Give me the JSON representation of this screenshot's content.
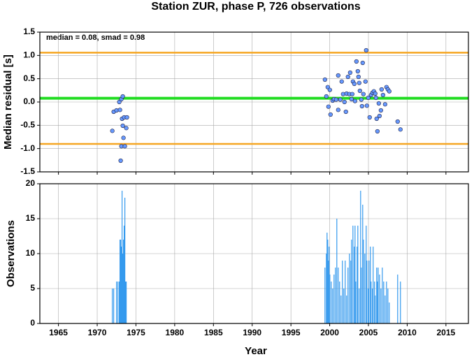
{
  "chart_data": [
    {
      "type": "scatter",
      "title": "Station ZUR, phase P, 726 observations",
      "y_label": "Median residual [s]",
      "annotation": "median = 0.08, smad = 0.98",
      "x": [
        1971.95,
        1972.13,
        1972.49,
        1972.85,
        1972.94,
        1973.12,
        1973.3,
        1973.21,
        1973.48,
        1973.3,
        1973.39,
        1973.12,
        1973.57,
        1973.75,
        1973.03,
        1973.84,
        1999.39,
        1999.57,
        1999.75,
        1999.84,
        2000.02,
        2000.11,
        2000.38,
        2000.56,
        2000.83,
        2001.1,
        2001.1,
        2001.37,
        2001.55,
        2001.73,
        2001.91,
        2002.09,
        2002.18,
        2002.36,
        2002.55,
        2002.64,
        2002.82,
        2002.91,
        2003.0,
        2003.18,
        2003.27,
        2003.45,
        2003.63,
        2003.72,
        2003.81,
        2003.9,
        2004.08,
        2004.17,
        2004.26,
        2004.35,
        2004.62,
        2004.71,
        2004.8,
        2004.98,
        2005.16,
        2005.34,
        2005.52,
        2005.7,
        2005.88,
        2005.97,
        2006.06,
        2006.16,
        2006.34,
        2006.43,
        2006.61,
        2006.7,
        2006.88,
        2007.15,
        2007.33,
        2007.51,
        2007.69,
        2008.77,
        2009.13
      ],
      "values": [
        -0.62,
        -0.21,
        -0.18,
        0.0,
        -0.17,
        0.06,
        0.12,
        -0.36,
        -0.33,
        -0.51,
        -0.77,
        -0.95,
        -0.95,
        -0.56,
        -1.26,
        -0.33,
        0.48,
        0.12,
        0.32,
        -0.1,
        0.26,
        -0.27,
        0.03,
        0.06,
        0.05,
        0.57,
        -0.17,
        0.05,
        0.44,
        0.17,
        0.0,
        -0.21,
        0.18,
        0.54,
        0.17,
        0.63,
        0.06,
        0.17,
        0.44,
        0.39,
        0.02,
        0.87,
        0.66,
        0.54,
        0.41,
        0.24,
        0.05,
        -0.09,
        0.84,
        0.17,
        0.44,
        1.11,
        -0.08,
        0.09,
        -0.33,
        0.15,
        0.2,
        0.23,
        0.18,
        0.09,
        -0.36,
        -0.63,
        -0.03,
        -0.3,
        -0.18,
        0.27,
        0.15,
        -0.05,
        0.32,
        0.27,
        0.23,
        -0.42,
        -0.59
      ],
      "color": "#6699ff",
      "reference_lines": [
        {
          "value": 1.06,
          "color": "#f5a623"
        },
        {
          "value": 0.08,
          "color": "#22dd22"
        },
        {
          "value": -0.9,
          "color": "#f5a623"
        }
      ],
      "xlim": [
        1962.6,
        2017.9
      ],
      "xticks": [
        1965,
        1970,
        1975,
        1980,
        1985,
        1990,
        1995,
        2000,
        2005,
        2010,
        2015
      ],
      "ylim": [
        -1.5,
        1.5
      ],
      "yticks": [
        -1.5,
        {
          "value": -1,
          "label": "-1.0"
        },
        -0.5,
        {
          "value": 0,
          "label": "0.0"
        },
        0.5,
        {
          "value": 1,
          "label": "1.0"
        },
        1.5
      ],
      "grid": true
    },
    {
      "type": "bar",
      "x_label": "Year",
      "y_label": "Observations",
      "x": [
        1971.95,
        1972.13,
        1972.49,
        1972.67,
        1972.85,
        1972.94,
        1973.03,
        1973.12,
        1973.21,
        1973.3,
        1973.39,
        1973.48,
        1973.57,
        1973.66,
        1973.75,
        1999.39,
        1999.57,
        1999.66,
        1999.75,
        1999.84,
        1999.93,
        2000.02,
        2000.2,
        2000.38,
        2000.56,
        2000.74,
        2000.92,
        2001.1,
        2001.28,
        2001.46,
        2001.64,
        2001.82,
        2002.0,
        2002.18,
        2002.36,
        2002.55,
        2002.73,
        2002.82,
        2003.0,
        2003.18,
        2003.27,
        2003.36,
        2003.54,
        2003.63,
        2003.81,
        2003.99,
        2004.08,
        2004.26,
        2004.35,
        2004.53,
        2004.71,
        2004.8,
        2004.98,
        2005.07,
        2005.25,
        2005.34,
        2005.52,
        2005.61,
        2005.79,
        2005.88,
        2006.06,
        2006.16,
        2006.25,
        2006.43,
        2006.61,
        2006.79,
        2006.97,
        2007.15,
        2007.33,
        2007.51,
        2007.69,
        2008.77,
        2009.13
      ],
      "values": [
        5,
        5,
        6,
        6,
        6,
        12,
        12,
        11,
        19,
        10,
        12,
        14,
        18,
        6,
        6,
        8,
        10,
        13,
        12,
        9,
        11,
        7,
        6,
        5,
        7,
        8,
        15,
        8,
        6,
        4,
        9,
        5,
        9,
        4,
        8,
        10,
        9,
        12,
        14,
        11,
        14,
        6,
        11,
        14,
        5,
        19,
        8,
        17,
        12,
        10,
        14,
        9,
        5,
        9,
        11,
        6,
        5,
        11,
        6,
        4,
        8,
        6,
        8,
        7,
        5,
        8,
        6,
        4,
        6,
        5,
        3,
        7,
        6
      ],
      "color": "#3399ee",
      "xlim": [
        1962.6,
        2017.9
      ],
      "xticks": [
        1965,
        1970,
        1975,
        1980,
        1985,
        1990,
        1995,
        2000,
        2005,
        2010,
        2015
      ],
      "ylim": [
        0,
        20
      ],
      "yticks": [
        0,
        5,
        10,
        15,
        20
      ],
      "grid": true
    }
  ]
}
